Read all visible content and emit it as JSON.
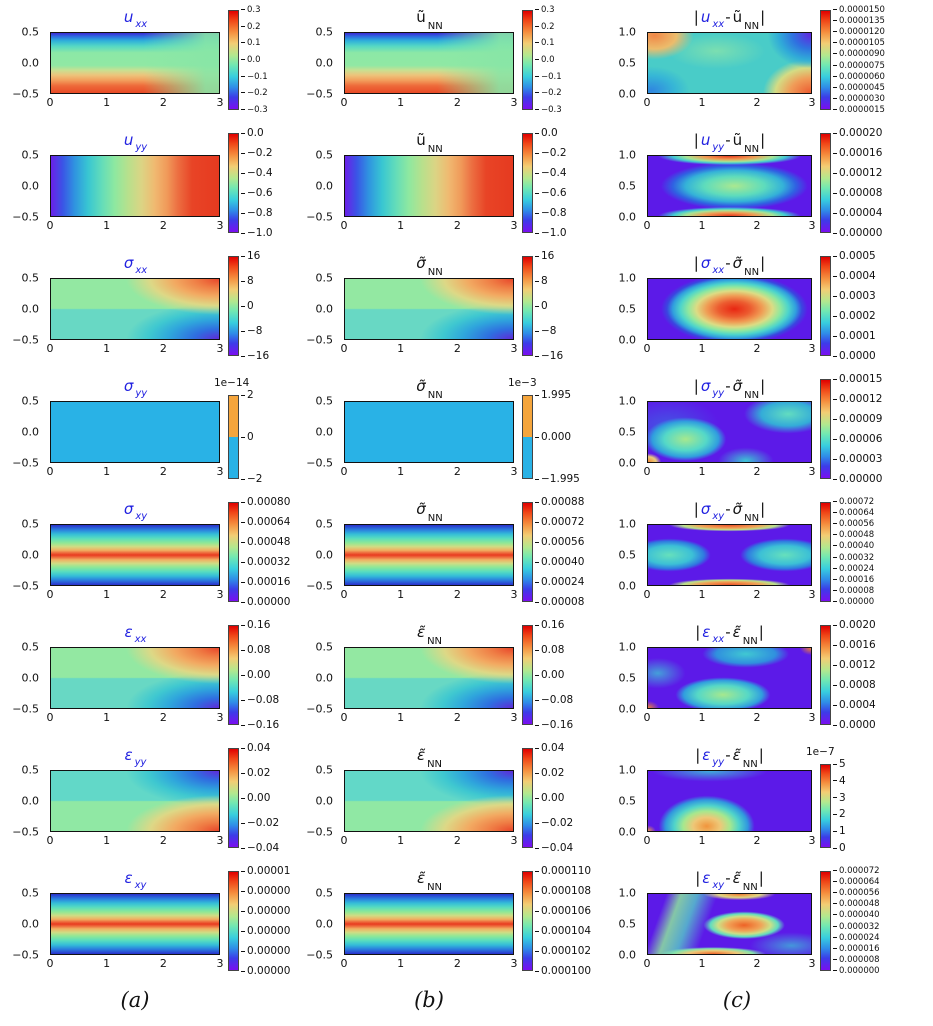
{
  "chart_data": {
    "type": "heatmap",
    "layout": "8x3 grid of filled contour plots, rainbow colormap, shared rectangular domain",
    "x_range": [
      0,
      3
    ],
    "x_ticks": [
      "0",
      "1",
      "2",
      "3"
    ],
    "y_ticks_ab": [
      "0.5",
      "0.0",
      "−0.5"
    ],
    "y_ticks_c": [
      "1.0",
      "0.5",
      "0.0"
    ],
    "footer_labels": [
      "(a)",
      "(b)",
      "(c)"
    ],
    "colors": {
      "title_blue": "#2222e0",
      "error_background_purple": "#5c1ae8",
      "flat_field_cyan": "#29b2e6"
    },
    "rows": [
      {
        "panels": [
          {
            "col": "a",
            "field": "u-xx",
            "pattern": "uxx",
            "cbar": "rainbow",
            "title": [
              {
                "t": "u",
                "c": "b",
                "i": 1
              },
              {
                "s": "xx",
                "c": "b"
              }
            ],
            "cbar_ticks": [
              "0.3",
              "0.2",
              "0.1",
              "0.0",
              "−0.1",
              "−0.2",
              "−0.3"
            ]
          },
          {
            "col": "b",
            "field": "u-xx-nn",
            "pattern": "uxx",
            "cbar": "rainbow",
            "title": [
              {
                "t": "ũ"
              },
              {
                "s": "xx",
                "p": "NN"
              }
            ],
            "cbar_ticks": [
              "0.3",
              "0.2",
              "0.1",
              "0.0",
              "−0.1",
              "−0.2",
              "−0.3"
            ]
          },
          {
            "col": "c",
            "field": "u-xx-error",
            "pattern": "e1",
            "cbar": "rainbow",
            "title": [
              {
                "t": "|"
              },
              {
                "t": "u",
                "c": "b",
                "i": 1
              },
              {
                "s": "xx",
                "c": "b"
              },
              {
                "t": "-"
              },
              {
                "t": "ũ"
              },
              {
                "s": "xx",
                "p": "NN"
              },
              {
                "t": "|"
              }
            ],
            "cbar_ticks": [
              "0.0000150",
              "0.0000135",
              "0.0000120",
              "0.0000105",
              "0.0000090",
              "0.0000075",
              "0.0000060",
              "0.0000045",
              "0.0000030",
              "0.0000015"
            ]
          }
        ]
      },
      {
        "panels": [
          {
            "col": "a",
            "field": "u-yy",
            "pattern": "uyy",
            "cbar": "rainbow",
            "title": [
              {
                "t": "u",
                "c": "b",
                "i": 1
              },
              {
                "s": "yy",
                "c": "b"
              }
            ],
            "cbar_ticks": [
              "0.0",
              "−0.2",
              "−0.4",
              "−0.6",
              "−0.8",
              "−1.0"
            ]
          },
          {
            "col": "b",
            "field": "u-yy-nn",
            "pattern": "uyy",
            "cbar": "rainbow",
            "title": [
              {
                "t": "ũ"
              },
              {
                "s": "yy",
                "p": "NN"
              }
            ],
            "cbar_ticks": [
              "0.0",
              "−0.2",
              "−0.4",
              "−0.6",
              "−0.8",
              "−1.0"
            ]
          },
          {
            "col": "c",
            "field": "u-yy-error",
            "pattern": "e2",
            "cbar": "rainbow",
            "title": [
              {
                "t": "|"
              },
              {
                "t": "u",
                "c": "b",
                "i": 1
              },
              {
                "s": "yy",
                "c": "b"
              },
              {
                "t": "-"
              },
              {
                "t": "ũ"
              },
              {
                "s": "yy",
                "p": "NN"
              },
              {
                "t": "|"
              }
            ],
            "cbar_ticks": [
              "0.00020",
              "0.00016",
              "0.00012",
              "0.00008",
              "0.00004",
              "0.00000"
            ]
          }
        ]
      },
      {
        "panels": [
          {
            "col": "a",
            "field": "sigma-xx",
            "pattern": "sxx",
            "cbar": "rainbow",
            "title": [
              {
                "t": "σ",
                "c": "b",
                "i": 1
              },
              {
                "s": "xx",
                "c": "b"
              }
            ],
            "cbar_ticks": [
              "16",
              "8",
              "0",
              "−8",
              "−16"
            ]
          },
          {
            "col": "b",
            "field": "sigma-xx-nn",
            "pattern": "sxx",
            "cbar": "rainbow",
            "title": [
              {
                "t": "σ̃",
                "i": 1
              },
              {
                "s": "xx",
                "p": "NN"
              }
            ],
            "cbar_ticks": [
              "16",
              "8",
              "0",
              "−8",
              "−16"
            ]
          },
          {
            "col": "c",
            "field": "sigma-xx-error",
            "pattern": "e3",
            "cbar": "rainbow",
            "title": [
              {
                "t": "|"
              },
              {
                "t": "σ",
                "c": "b",
                "i": 1
              },
              {
                "s": "xx",
                "c": "b"
              },
              {
                "t": "-"
              },
              {
                "t": "σ̃",
                "i": 1
              },
              {
                "s": "xx",
                "p": "NN"
              },
              {
                "t": "|"
              }
            ],
            "cbar_ticks": [
              "0.0005",
              "0.0004",
              "0.0003",
              "0.0002",
              "0.0001",
              "0.0000"
            ]
          }
        ]
      },
      {
        "panels": [
          {
            "col": "a",
            "field": "sigma-yy",
            "pattern": "flat",
            "cbar": "two",
            "cbar_offset": "1e−14",
            "title": [
              {
                "t": "σ",
                "c": "b",
                "i": 1
              },
              {
                "s": "yy",
                "c": "b"
              }
            ],
            "cbar_ticks": [
              "2",
              "0",
              "−2"
            ]
          },
          {
            "col": "b",
            "field": "sigma-yy-nn",
            "pattern": "flat",
            "cbar": "two",
            "cbar_offset": "1e−3",
            "title": [
              {
                "t": "σ̃",
                "i": 1
              },
              {
                "s": "yy",
                "p": "NN"
              }
            ],
            "cbar_ticks": [
              "1.995",
              "0.000",
              "−1.995"
            ]
          },
          {
            "col": "c",
            "field": "sigma-yy-error",
            "pattern": "e4",
            "cbar": "rainbow",
            "title": [
              {
                "t": "|"
              },
              {
                "t": "σ",
                "c": "b",
                "i": 1
              },
              {
                "s": "yy",
                "c": "b"
              },
              {
                "t": "-"
              },
              {
                "t": "σ̃",
                "i": 1
              },
              {
                "s": "yy",
                "p": "NN"
              },
              {
                "t": "|"
              }
            ],
            "cbar_ticks": [
              "0.00015",
              "0.00012",
              "0.00009",
              "0.00006",
              "0.00003",
              "0.00000"
            ]
          }
        ]
      },
      {
        "panels": [
          {
            "col": "a",
            "field": "sigma-xy",
            "pattern": "sxy",
            "cbar": "rainbow",
            "title": [
              {
                "t": "σ",
                "c": "b",
                "i": 1
              },
              {
                "s": "xy",
                "c": "b"
              }
            ],
            "cbar_ticks": [
              "0.00080",
              "0.00064",
              "0.00048",
              "0.00032",
              "0.00016",
              "0.00000"
            ]
          },
          {
            "col": "b",
            "field": "sigma-xy-nn",
            "pattern": "sxy",
            "cbar": "rainbow",
            "title": [
              {
                "t": "σ̃",
                "i": 1
              },
              {
                "s": "xy",
                "p": "NN"
              }
            ],
            "cbar_ticks": [
              "0.00088",
              "0.00072",
              "0.00056",
              "0.00040",
              "0.00024",
              "0.00008"
            ]
          },
          {
            "col": "c",
            "field": "sigma-xy-error",
            "pattern": "e5",
            "cbar": "rainbow",
            "title": [
              {
                "t": "|"
              },
              {
                "t": "σ",
                "c": "b",
                "i": 1
              },
              {
                "s": "xy",
                "c": "b"
              },
              {
                "t": "-"
              },
              {
                "t": "σ̃",
                "i": 1
              },
              {
                "s": "xy",
                "p": "NN"
              },
              {
                "t": "|"
              }
            ],
            "cbar_ticks": [
              "0.00072",
              "0.00064",
              "0.00056",
              "0.00048",
              "0.00040",
              "0.00032",
              "0.00024",
              "0.00016",
              "0.00008",
              "0.00000"
            ]
          }
        ]
      },
      {
        "panels": [
          {
            "col": "a",
            "field": "epsilon-xx",
            "pattern": "sxx",
            "cbar": "rainbow",
            "title": [
              {
                "t": "ε",
                "c": "b",
                "i": 1
              },
              {
                "s": "xx",
                "c": "b"
              }
            ],
            "cbar_ticks": [
              "0.16",
              "0.08",
              "0.00",
              "−0.08",
              "−0.16"
            ]
          },
          {
            "col": "b",
            "field": "epsilon-xx-nn",
            "pattern": "sxx",
            "cbar": "rainbow",
            "title": [
              {
                "t": "ε̃",
                "i": 1
              },
              {
                "s": "xx",
                "p": "NN"
              }
            ],
            "cbar_ticks": [
              "0.16",
              "0.08",
              "0.00",
              "−0.08",
              "−0.16"
            ]
          },
          {
            "col": "c",
            "field": "epsilon-xx-error",
            "pattern": "e6",
            "cbar": "rainbow",
            "title": [
              {
                "t": "|"
              },
              {
                "t": "ε",
                "c": "b",
                "i": 1
              },
              {
                "s": "xx",
                "c": "b"
              },
              {
                "t": "-"
              },
              {
                "t": "ε̃",
                "i": 1
              },
              {
                "s": "xx",
                "p": "NN"
              },
              {
                "t": "|"
              }
            ],
            "cbar_ticks": [
              "0.0020",
              "0.0016",
              "0.0012",
              "0.0008",
              "0.0004",
              "0.0000"
            ]
          }
        ]
      },
      {
        "panels": [
          {
            "col": "a",
            "field": "epsilon-yy",
            "pattern": "eyy",
            "cbar": "rainbow",
            "title": [
              {
                "t": "ε",
                "c": "b",
                "i": 1
              },
              {
                "s": "yy",
                "c": "b"
              }
            ],
            "cbar_ticks": [
              "0.04",
              "0.02",
              "0.00",
              "−0.02",
              "−0.04"
            ]
          },
          {
            "col": "b",
            "field": "epsilon-yy-nn",
            "pattern": "eyy",
            "cbar": "rainbow",
            "title": [
              {
                "t": "ε̃",
                "i": 1
              },
              {
                "s": "yy",
                "p": "NN"
              }
            ],
            "cbar_ticks": [
              "0.04",
              "0.02",
              "0.00",
              "−0.02",
              "−0.04"
            ]
          },
          {
            "col": "c",
            "field": "epsilon-yy-error",
            "pattern": "e7",
            "cbar": "rainbow",
            "cbar_offset": "1e−7",
            "title": [
              {
                "t": "|"
              },
              {
                "t": "ε",
                "c": "b",
                "i": 1
              },
              {
                "s": "yy",
                "c": "b"
              },
              {
                "t": "-"
              },
              {
                "t": "ε̃",
                "i": 1
              },
              {
                "s": "yy",
                "p": "NN"
              },
              {
                "t": "|"
              }
            ],
            "cbar_ticks": [
              "5",
              "4",
              "3",
              "2",
              "1",
              "0"
            ]
          }
        ]
      },
      {
        "panels": [
          {
            "col": "a",
            "field": "epsilon-xy",
            "pattern": "sxy",
            "cbar": "rainbow",
            "title": [
              {
                "t": "ε",
                "c": "b",
                "i": 1
              },
              {
                "s": "xy",
                "c": "b"
              }
            ],
            "cbar_ticks": [
              "0.00001",
              "0.00000",
              "0.00000",
              "0.00000",
              "0.00000",
              "0.00000"
            ]
          },
          {
            "col": "b",
            "field": "epsilon-xy-nn",
            "pattern": "sxy",
            "cbar": "rainbow",
            "title": [
              {
                "t": "ε̃",
                "i": 1
              },
              {
                "s": "xy",
                "p": "NN"
              }
            ],
            "cbar_ticks": [
              "0.000110",
              "0.000108",
              "0.000106",
              "0.000104",
              "0.000102",
              "0.000100"
            ]
          },
          {
            "col": "c",
            "field": "epsilon-xy-error",
            "pattern": "e8",
            "cbar": "rainbow",
            "title": [
              {
                "t": "|"
              },
              {
                "t": "ε",
                "c": "b",
                "i": 1
              },
              {
                "s": "xy",
                "c": "b"
              },
              {
                "t": "-"
              },
              {
                "t": "ε̃",
                "i": 1
              },
              {
                "s": "xy",
                "p": "NN"
              },
              {
                "t": "|"
              }
            ],
            "cbar_ticks": [
              "0.000072",
              "0.000064",
              "0.000056",
              "0.000048",
              "0.000040",
              "0.000032",
              "0.000024",
              "0.000016",
              "0.000008",
              "0.000000"
            ]
          }
        ]
      }
    ]
  }
}
